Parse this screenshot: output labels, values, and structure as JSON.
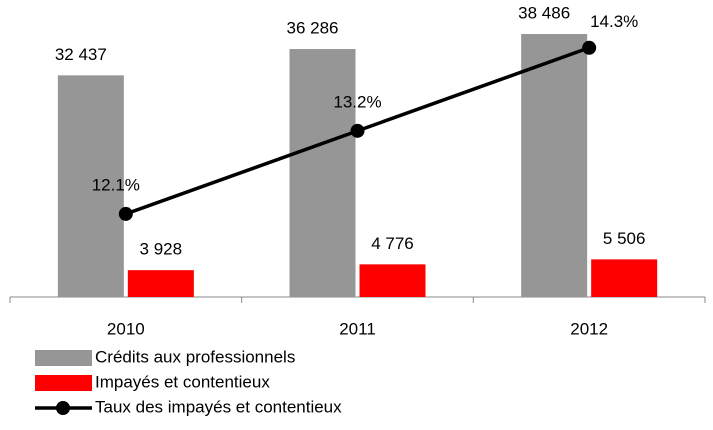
{
  "chart_data": {
    "type": "bar",
    "categories": [
      "2010",
      "2011",
      "2012"
    ],
    "series": [
      {
        "name": "Crédits aux professionnels",
        "color": "#969696",
        "values": [
          32437,
          36286,
          38486
        ],
        "value_labels": [
          "32 437",
          "36 286",
          "38 486"
        ]
      },
      {
        "name": "Impayés et contentieux",
        "color": "#ff0000",
        "values": [
          3928,
          4776,
          5506
        ],
        "value_labels": [
          "3 928",
          "4 776",
          "5 506"
        ]
      },
      {
        "name": "Taux des impayés et contentieux",
        "type": "line",
        "axis": "y2",
        "color": "#000000",
        "values": [
          12.1,
          13.2,
          14.3
        ],
        "value_labels": [
          "12.1%",
          "13.2%",
          "14.3%"
        ]
      }
    ],
    "ylim": [
      0,
      42000
    ],
    "y2lim": [
      11,
      14.8
    ],
    "legend": "bottom"
  }
}
